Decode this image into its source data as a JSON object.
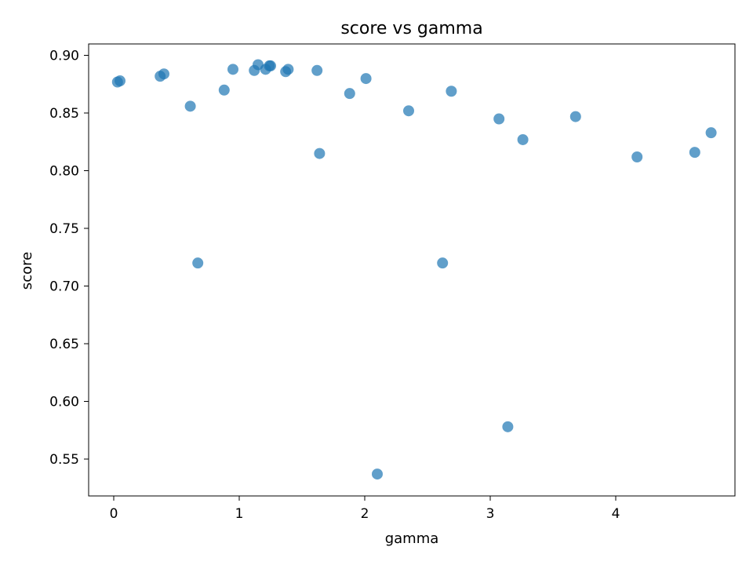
{
  "chart_data": {
    "type": "scatter",
    "title": "score vs gamma",
    "xlabel": "gamma",
    "ylabel": "score",
    "xlim": [
      -0.2,
      4.95
    ],
    "ylim": [
      0.518,
      0.91
    ],
    "xticks": [
      0,
      1,
      2,
      3,
      4
    ],
    "yticks": [
      0.55,
      0.6,
      0.65,
      0.7,
      0.75,
      0.8,
      0.85,
      0.9
    ],
    "grid": false,
    "legend": "none",
    "color": "#1f77b4",
    "points": [
      {
        "x": 0.03,
        "y": 0.877
      },
      {
        "x": 0.05,
        "y": 0.878
      },
      {
        "x": 0.37,
        "y": 0.882
      },
      {
        "x": 0.4,
        "y": 0.884
      },
      {
        "x": 0.61,
        "y": 0.856
      },
      {
        "x": 0.67,
        "y": 0.72
      },
      {
        "x": 0.88,
        "y": 0.87
      },
      {
        "x": 0.95,
        "y": 0.888
      },
      {
        "x": 1.12,
        "y": 0.887
      },
      {
        "x": 1.15,
        "y": 0.892
      },
      {
        "x": 1.21,
        "y": 0.888
      },
      {
        "x": 1.24,
        "y": 0.891
      },
      {
        "x": 1.25,
        "y": 0.891
      },
      {
        "x": 1.37,
        "y": 0.886
      },
      {
        "x": 1.39,
        "y": 0.888
      },
      {
        "x": 1.62,
        "y": 0.887
      },
      {
        "x": 1.64,
        "y": 0.815
      },
      {
        "x": 1.88,
        "y": 0.867
      },
      {
        "x": 2.01,
        "y": 0.88
      },
      {
        "x": 2.1,
        "y": 0.537
      },
      {
        "x": 2.35,
        "y": 0.852
      },
      {
        "x": 2.62,
        "y": 0.72
      },
      {
        "x": 2.69,
        "y": 0.869
      },
      {
        "x": 3.07,
        "y": 0.845
      },
      {
        "x": 3.14,
        "y": 0.578
      },
      {
        "x": 3.26,
        "y": 0.827
      },
      {
        "x": 3.68,
        "y": 0.847
      },
      {
        "x": 4.17,
        "y": 0.812
      },
      {
        "x": 4.63,
        "y": 0.816
      },
      {
        "x": 4.76,
        "y": 0.833
      }
    ]
  }
}
